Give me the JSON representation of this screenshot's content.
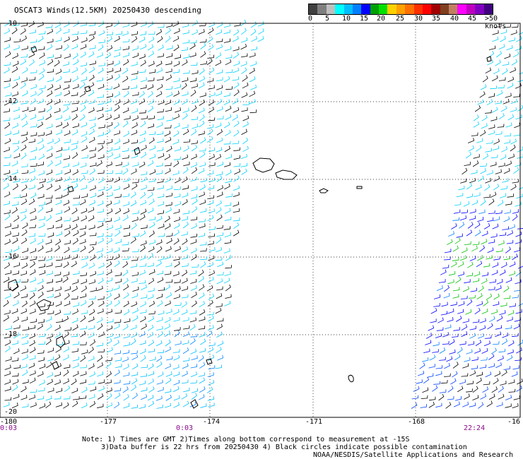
{
  "title": "OSCAT3 Winds(12.5KM) 20250430 descending",
  "colorbar": {
    "swatches": [
      "#404040",
      "#7f7f7f",
      "#bfbfbf",
      "#00ffff",
      "#00bfff",
      "#0080ff",
      "#0000ff",
      "#00a000",
      "#00e000",
      "#ffd000",
      "#ffa000",
      "#ff7000",
      "#ff3000",
      "#ff0000",
      "#a00000",
      "#804020",
      "#c08060",
      "#ff00ff",
      "#c000c0",
      "#8000c0",
      "#400080"
    ],
    "labels": [
      "0",
      "5",
      "10",
      "15",
      "20",
      "25",
      "30",
      "35",
      "40",
      "45",
      ">50 knots"
    ]
  },
  "map": {
    "lat_labels": [
      "-10",
      "-12",
      "-14",
      "-16",
      "-18",
      "-20"
    ],
    "lon_labels": [
      "-180",
      "-177",
      "-174",
      "-171",
      "-168",
      "-16"
    ],
    "time_labels": [
      "0:03",
      "0:03",
      "22:24"
    ]
  },
  "notes": {
    "line1": "Note: 1) Times are GMT 2)Times along bottom correspond to measurement at -15S",
    "line2": "3)Data buffer is 22 hrs from 20250430 4) Black circles indicate possible contamination",
    "line3": "NOAA/NESDIS/Satellite Applications and Research"
  }
}
